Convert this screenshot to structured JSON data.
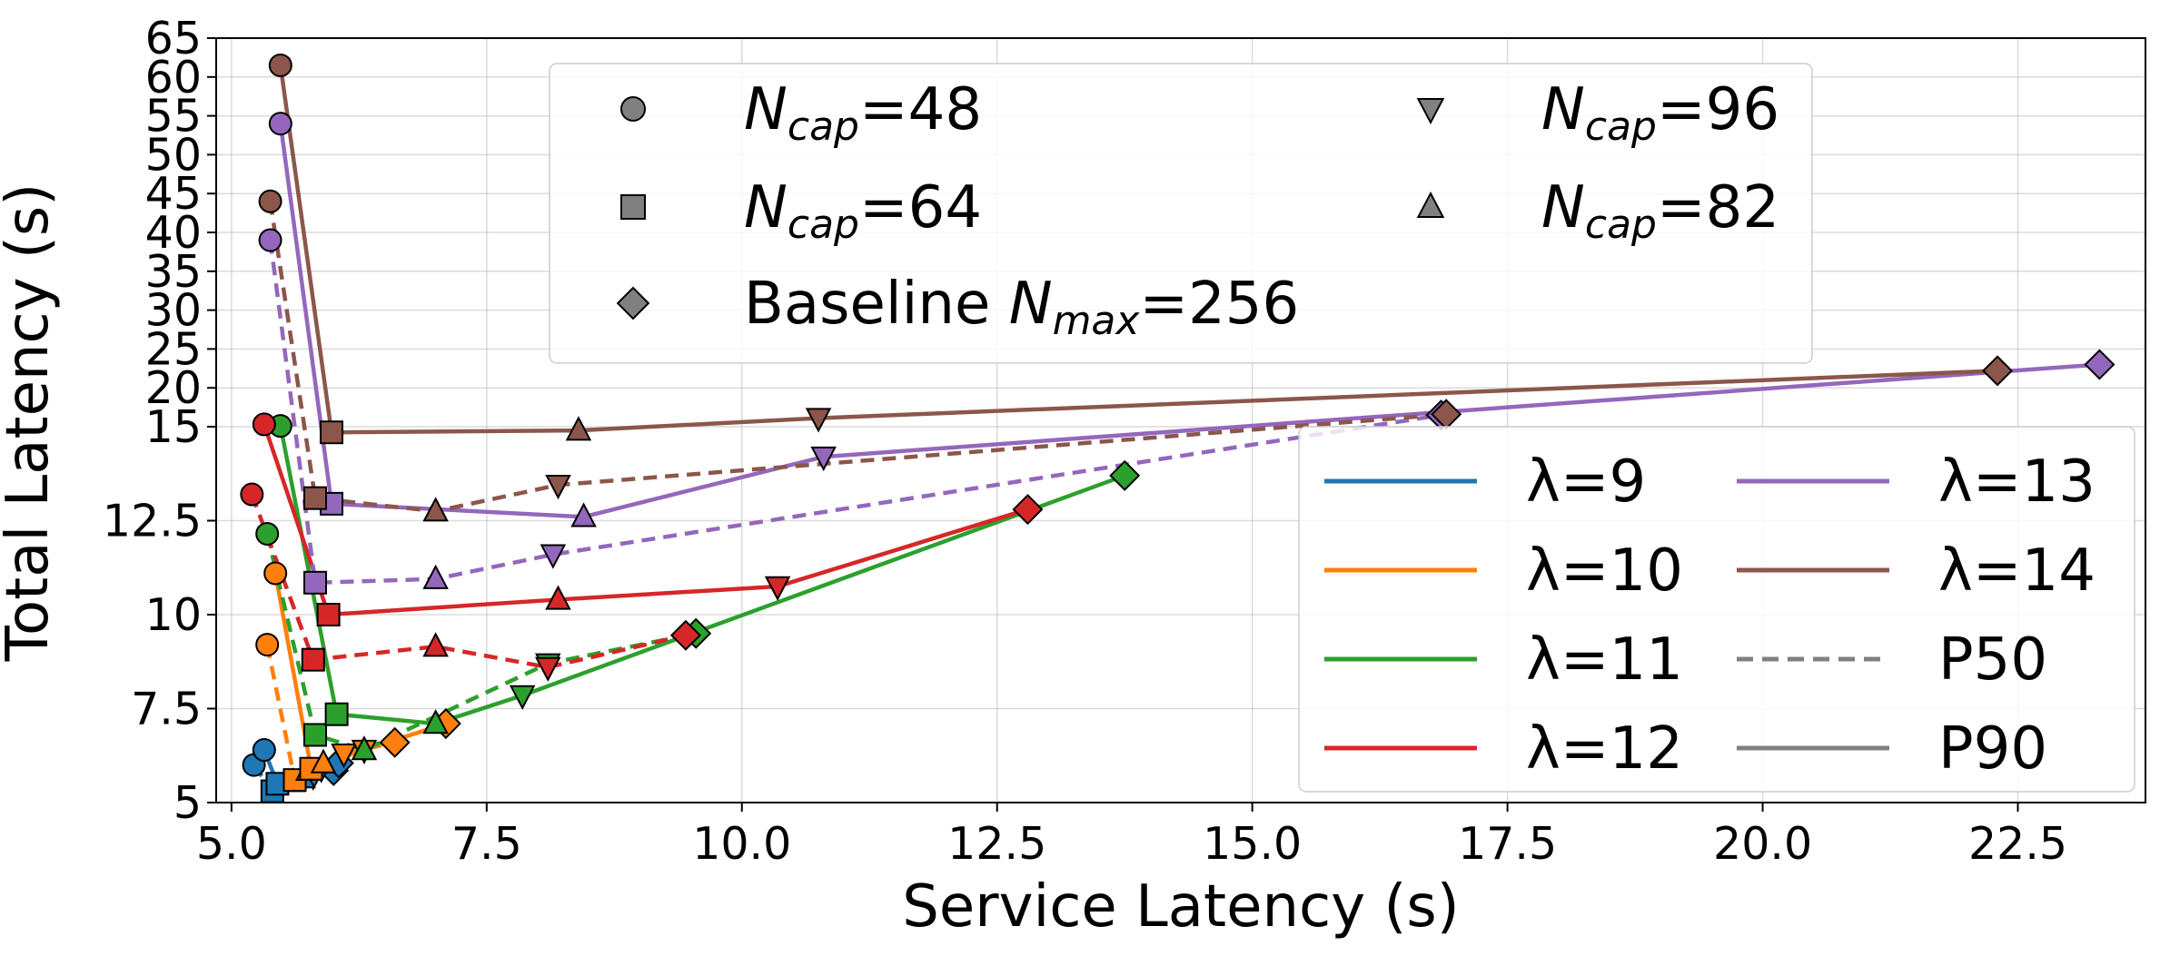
{
  "chart_data": {
    "type": "line",
    "xlabel": "Service Latency (s)",
    "ylabel": "Total Latency (s)",
    "xlim": [
      4.85,
      23.75
    ],
    "xticks": [
      5.0,
      7.5,
      10.0,
      12.5,
      15.0,
      17.5,
      20.0,
      22.5
    ],
    "xtick_labels": [
      "5.0",
      "7.5",
      "10.0",
      "12.5",
      "15.0",
      "17.5",
      "20.0",
      "22.5"
    ],
    "y_scale": "piecewise: linear 5–15, compressed 15–65",
    "ylim": [
      5,
      65
    ],
    "yticks": [
      5,
      7.5,
      10,
      12.5,
      15,
      20,
      25,
      30,
      35,
      40,
      45,
      50,
      55,
      60,
      65
    ],
    "ytick_labels": [
      "5",
      "7.5",
      "10",
      "12.5",
      "15",
      "20",
      "25",
      "30",
      "35",
      "40",
      "45",
      "50",
      "55",
      "60",
      "65"
    ],
    "grid": true,
    "colors": {
      "9": "#1f77b4",
      "10": "#ff7f0e",
      "11": "#2ca02c",
      "12": "#d62728",
      "13": "#9467bd",
      "14": "#8c564b",
      "legend_gray": "#808080"
    },
    "marker_legend": {
      "placement": "top-center",
      "entries": [
        {
          "marker": "circle",
          "base": "N",
          "sub": "cap",
          "suffix": "=48"
        },
        {
          "marker": "triangle-down",
          "base": "N",
          "sub": "cap",
          "suffix": "=96"
        },
        {
          "marker": "square",
          "base": "N",
          "sub": "cap",
          "suffix": "=64"
        },
        {
          "marker": "triangle-up",
          "base": "N",
          "sub": "cap",
          "suffix": "=82"
        },
        {
          "marker": "diamond",
          "prefix": "Baseline ",
          "base": "N",
          "sub": "max",
          "suffix": "=256"
        }
      ]
    },
    "line_legend": {
      "placement": "lower-right",
      "entries": [
        {
          "label": "λ=9",
          "color": "#1f77b4",
          "style": "solid"
        },
        {
          "label": "λ=13",
          "color": "#9467bd",
          "style": "solid"
        },
        {
          "label": "λ=10",
          "color": "#ff7f0e",
          "style": "solid"
        },
        {
          "label": "λ=14",
          "color": "#8c564b",
          "style": "solid"
        },
        {
          "label": "λ=11",
          "color": "#2ca02c",
          "style": "solid"
        },
        {
          "label": "P50",
          "color": "#808080",
          "style": "dashed"
        },
        {
          "label": "λ=12",
          "color": "#d62728",
          "style": "solid"
        },
        {
          "label": "P90",
          "color": "#808080",
          "style": "solid"
        }
      ]
    },
    "marker_order": [
      "circle",
      "square",
      "triangle-up",
      "triangle-down",
      "diamond"
    ],
    "series": [
      {
        "lambda": 9,
        "stat": "P50",
        "style": "dashed",
        "points": [
          [
            5.22,
            6.0
          ],
          [
            5.4,
            5.3
          ],
          [
            5.6,
            5.55
          ],
          [
            5.8,
            5.7
          ],
          [
            6.0,
            5.85
          ]
        ]
      },
      {
        "lambda": 9,
        "stat": "P90",
        "style": "solid",
        "points": [
          [
            5.32,
            6.4
          ],
          [
            5.45,
            5.5
          ],
          [
            5.7,
            5.65
          ],
          [
            5.88,
            5.9
          ],
          [
            6.05,
            6.05
          ]
        ]
      },
      {
        "lambda": 10,
        "stat": "P50",
        "style": "dashed",
        "points": [
          [
            5.35,
            9.2
          ],
          [
            5.62,
            5.6
          ],
          [
            5.75,
            5.85
          ],
          [
            6.1,
            6.3
          ],
          [
            6.6,
            6.6
          ]
        ]
      },
      {
        "lambda": 10,
        "stat": "P90",
        "style": "solid",
        "points": [
          [
            5.43,
            11.1
          ],
          [
            5.78,
            5.9
          ],
          [
            5.9,
            6.05
          ],
          [
            6.3,
            6.4
          ],
          [
            7.1,
            7.1
          ]
        ]
      },
      {
        "lambda": 11,
        "stat": "P50",
        "style": "dashed",
        "points": [
          [
            5.35,
            12.15
          ],
          [
            5.82,
            6.8
          ],
          [
            6.3,
            6.4
          ],
          [
            8.1,
            8.7
          ],
          [
            9.55,
            9.5
          ]
        ]
      },
      {
        "lambda": 11,
        "stat": "P90",
        "style": "solid",
        "points": [
          [
            5.48,
            15.1
          ],
          [
            6.03,
            7.35
          ],
          [
            7.0,
            7.1
          ],
          [
            7.85,
            7.85
          ],
          [
            13.75,
            13.7
          ]
        ]
      },
      {
        "lambda": 12,
        "stat": "P50",
        "style": "dashed",
        "points": [
          [
            5.2,
            13.2
          ],
          [
            5.8,
            8.8
          ],
          [
            7.0,
            9.15
          ],
          [
            8.1,
            8.6
          ],
          [
            9.45,
            9.45
          ]
        ]
      },
      {
        "lambda": 12,
        "stat": "P90",
        "style": "solid",
        "points": [
          [
            5.32,
            15.3
          ],
          [
            5.95,
            10.0
          ],
          [
            8.2,
            10.4
          ],
          [
            10.35,
            10.75
          ],
          [
            12.8,
            12.8
          ]
        ]
      },
      {
        "lambda": 13,
        "stat": "P50",
        "style": "dashed",
        "points": [
          [
            5.38,
            39.0
          ],
          [
            5.82,
            10.85
          ],
          [
            7.0,
            10.95
          ],
          [
            8.15,
            11.6
          ],
          [
            16.85,
            16.5
          ]
        ]
      },
      {
        "lambda": 13,
        "stat": "P90",
        "style": "solid",
        "points": [
          [
            5.48,
            54.0
          ],
          [
            5.98,
            12.95
          ],
          [
            8.45,
            12.6
          ],
          [
            10.8,
            14.2
          ],
          [
            23.3,
            23.0
          ]
        ]
      },
      {
        "lambda": 14,
        "stat": "P50",
        "style": "dashed",
        "points": [
          [
            5.38,
            44.0
          ],
          [
            5.82,
            13.1
          ],
          [
            7.0,
            12.75
          ],
          [
            8.2,
            13.45
          ],
          [
            16.9,
            16.6
          ]
        ]
      },
      {
        "lambda": 14,
        "stat": "P90",
        "style": "solid",
        "points": [
          [
            5.48,
            61.5
          ],
          [
            5.98,
            14.85
          ],
          [
            8.4,
            14.9
          ],
          [
            10.75,
            16.1
          ],
          [
            22.3,
            22.2
          ]
        ]
      }
    ]
  }
}
